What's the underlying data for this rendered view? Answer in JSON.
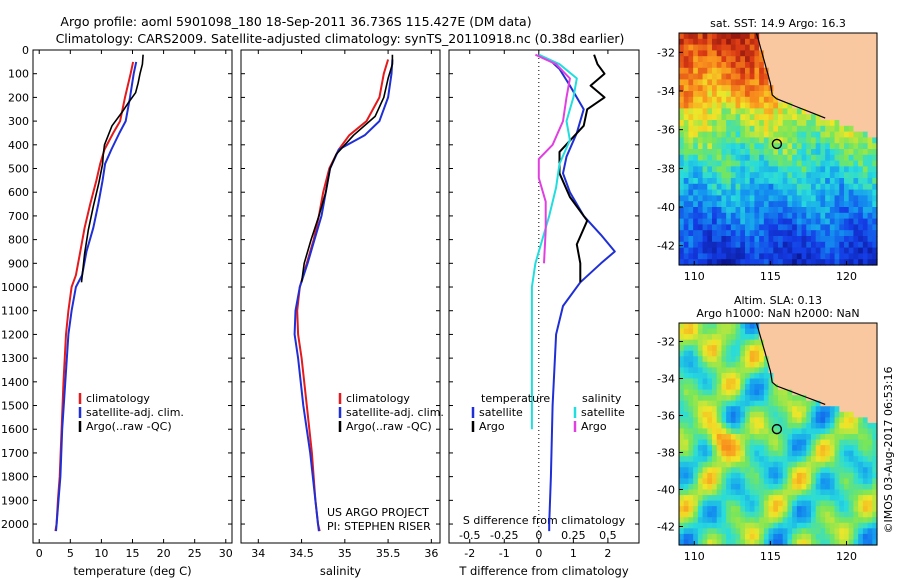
{
  "header": {
    "line1": "Argo profile: aoml 5901098_180 18-Sep-2011 36.736S 115.427E (DM data)",
    "line2": "Climatology: CARS2009. Satellite-adjusted climatology: synTS_20110918.nc (0.38d earlier)"
  },
  "colors": {
    "climatology": "#e41a1c",
    "satellite": "#1f2fd6",
    "argo": "#000000",
    "satellite_salinity": "#22dddd",
    "argo_salinity": "#e040e0",
    "land": "#f9c8a0"
  },
  "chart_data": [
    {
      "type": "line",
      "id": "temperature",
      "xlabel": "temperature (deg C)",
      "ylabel": "",
      "xlim": [
        -1,
        31
      ],
      "ylim": [
        2080,
        0
      ],
      "xticks": [
        0,
        5,
        10,
        15,
        20,
        25,
        30
      ],
      "yticks": [
        0,
        100,
        200,
        300,
        400,
        500,
        600,
        700,
        800,
        900,
        1000,
        1100,
        1200,
        1300,
        1400,
        1500,
        1600,
        1700,
        1800,
        1900,
        2000
      ],
      "legend": {
        "position": "lower-middle",
        "entries": [
          "climatology",
          "satellite-adj. clim.",
          "Argo(..raw -QC)"
        ]
      },
      "series": [
        {
          "name": "climatology",
          "color_key": "climatology",
          "x": [
            15.1,
            14.7,
            13.8,
            13.0,
            11.9,
            10.5,
            9.8,
            9.2,
            8.2,
            7.3,
            6.6,
            5.9,
            5.2,
            4.7,
            4.3,
            3.9,
            3.6,
            3.3,
            3.0,
            2.8,
            2.6
          ],
          "y": [
            50,
            100,
            200,
            300,
            350,
            420,
            480,
            550,
            650,
            750,
            850,
            950,
            1000,
            1100,
            1200,
            1400,
            1600,
            1800,
            1900,
            2000,
            2030
          ]
        },
        {
          "name": "satellite-adj. clim.",
          "color_key": "satellite",
          "x": [
            15.6,
            15.2,
            14.6,
            13.9,
            12.9,
            11.6,
            10.6,
            10.2,
            9.5,
            8.7,
            7.6,
            6.9,
            5.9,
            5.2,
            4.7,
            4.2,
            3.7,
            3.4,
            3.1,
            2.8,
            2.7
          ],
          "y": [
            50,
            100,
            200,
            300,
            350,
            420,
            480,
            550,
            650,
            750,
            850,
            950,
            1000,
            1100,
            1200,
            1400,
            1600,
            1800,
            1900,
            2000,
            2030
          ]
        },
        {
          "name": "Argo(..raw -QC)",
          "color_key": "argo",
          "x": [
            16.7,
            16.6,
            16.2,
            15.9,
            15.5,
            14.4,
            13.4,
            11.7,
            10.5,
            10.3,
            10.2,
            9.6,
            8.7,
            7.9,
            7.3,
            6.8
          ],
          "y": [
            20,
            60,
            100,
            140,
            180,
            220,
            260,
            320,
            400,
            440,
            480,
            560,
            660,
            760,
            860,
            980
          ]
        }
      ]
    },
    {
      "type": "line",
      "id": "salinity",
      "xlabel": "salinity",
      "ylabel": "",
      "xlim": [
        33.8,
        36.1
      ],
      "ylim": [
        2080,
        0
      ],
      "xticks": [
        34,
        34.5,
        35,
        35.5,
        36
      ],
      "legend": {
        "position": "lower-right",
        "entries": [
          "climatology",
          "satellite-adj. clim.",
          "Argo(..raw -QC)"
        ]
      },
      "annotations": [
        "US ARGO PROJECT",
        "PI: STEPHEN RISER"
      ],
      "series": [
        {
          "name": "climatology",
          "color_key": "climatology",
          "x": [
            35.5,
            35.45,
            35.4,
            35.25,
            35.05,
            34.93,
            34.82,
            34.75,
            34.7,
            34.64,
            34.56,
            34.48,
            34.45,
            34.46,
            34.5,
            34.56,
            34.62,
            34.66,
            34.69,
            34.71
          ],
          "y": [
            40,
            100,
            200,
            300,
            360,
            420,
            500,
            600,
            700,
            800,
            900,
            1000,
            1100,
            1200,
            1300,
            1500,
            1700,
            1900,
            2000,
            2030
          ]
        },
        {
          "name": "satellite-adj. clim.",
          "color_key": "satellite",
          "x": [
            35.55,
            35.54,
            35.5,
            35.4,
            35.23,
            34.93,
            34.83,
            34.78,
            34.73,
            34.65,
            34.57,
            34.48,
            34.43,
            34.42,
            34.46,
            34.52,
            34.6,
            34.66,
            34.69,
            34.7
          ],
          "y": [
            40,
            100,
            200,
            300,
            360,
            420,
            500,
            600,
            700,
            800,
            900,
            1000,
            1100,
            1200,
            1300,
            1500,
            1700,
            1900,
            2000,
            2030
          ]
        },
        {
          "name": "Argo(..raw -QC)",
          "color_key": "argo",
          "x": [
            35.55,
            35.55,
            35.5,
            35.45,
            35.35,
            35.1,
            34.9,
            34.83,
            34.78,
            34.7,
            34.61,
            34.53,
            34.5
          ],
          "y": [
            20,
            60,
            120,
            200,
            280,
            360,
            440,
            500,
            600,
            700,
            800,
            900,
            980
          ]
        }
      ]
    },
    {
      "type": "line",
      "id": "difference",
      "xlabel": "T difference from climatology",
      "xlabel_top": "S difference from climatology",
      "xlim": [
        -2.6,
        2.9
      ],
      "ylim": [
        2080,
        0
      ],
      "xticks_T": [
        -2,
        -1,
        0,
        1,
        2
      ],
      "xticks_S_labels": [
        "-0.5",
        "-0.25",
        "0",
        "0.25",
        "0.5"
      ],
      "xticks_S_positions": [
        -2,
        -1,
        0,
        1,
        2
      ],
      "legend": {
        "position": "lower-middle",
        "temperature_title": "temperature",
        "salinity_title": "salinity",
        "entries": [
          "satellite",
          "Argo",
          "satellite",
          "Argo"
        ]
      },
      "series": [
        {
          "name": "satellite",
          "group": "temperature",
          "color_key": "satellite",
          "x": [
            0.3,
            0.6,
            0.9,
            1.3,
            1.1,
            0.8,
            0.7,
            0.9,
            1.3,
            1.8,
            2.2,
            1.8,
            1.2,
            0.7,
            0.5,
            0.4,
            0.35,
            0.3,
            0.3
          ],
          "y": [
            40,
            80,
            150,
            250,
            350,
            450,
            520,
            600,
            700,
            780,
            850,
            900,
            980,
            1080,
            1200,
            1500,
            1800,
            2000,
            2030
          ]
        },
        {
          "name": "Argo",
          "group": "temperature",
          "color_key": "argo",
          "x": [
            1.6,
            1.7,
            1.9,
            1.5,
            1.9,
            1.4,
            1.3,
            0.6,
            0.6,
            0.9,
            1.4,
            1.1,
            1.2,
            1.2
          ],
          "y": [
            20,
            60,
            100,
            150,
            200,
            250,
            320,
            430,
            520,
            620,
            720,
            820,
            900,
            980
          ]
        },
        {
          "name": "satellite",
          "group": "salinity",
          "color_key": "satellite_salinity",
          "x": [
            0.0,
            0.6,
            1.1,
            1.0,
            0.8,
            0.9,
            0.6,
            0.5,
            0.3,
            0.1,
            -0.1,
            -0.2,
            -0.2,
            -0.2,
            -0.2
          ],
          "y": [
            20,
            60,
            120,
            200,
            300,
            380,
            480,
            580,
            700,
            800,
            900,
            1000,
            1100,
            1300,
            1600
          ]
        },
        {
          "name": "Argo",
          "group": "salinity",
          "color_key": "argo_salinity",
          "x": [
            -0.1,
            0.5,
            0.9,
            0.8,
            0.7,
            0.4,
            0.0,
            0.0,
            0.2,
            0.2,
            0.15
          ],
          "y": [
            20,
            60,
            120,
            200,
            300,
            400,
            460,
            540,
            640,
            760,
            900
          ]
        }
      ]
    },
    {
      "type": "heatmap",
      "id": "sst-map",
      "title": "sat. SST: 14.9 Argo: 16.3",
      "xlim": [
        109,
        122
      ],
      "ylim": [
        -43,
        -31
      ],
      "xticks": [
        110,
        115,
        120
      ],
      "yticks": [
        -32,
        -34,
        -36,
        -38,
        -40,
        -42
      ],
      "marker": {
        "lon": 115.427,
        "lat": -36.736
      }
    },
    {
      "type": "heatmap",
      "id": "sla-map",
      "title_line1": "Altim. SLA: 0.13",
      "title_line2": "Argo h1000: NaN h2000: NaN",
      "xlim": [
        109,
        122
      ],
      "ylim": [
        -43,
        -31
      ],
      "xticks": [
        110,
        115,
        120
      ],
      "yticks": [
        -32,
        -34,
        -36,
        -38,
        -40,
        -42
      ],
      "marker": {
        "lon": 115.427,
        "lat": -36.736
      },
      "credit": "©IMOS 03-Aug-2017 06:53:16"
    }
  ]
}
